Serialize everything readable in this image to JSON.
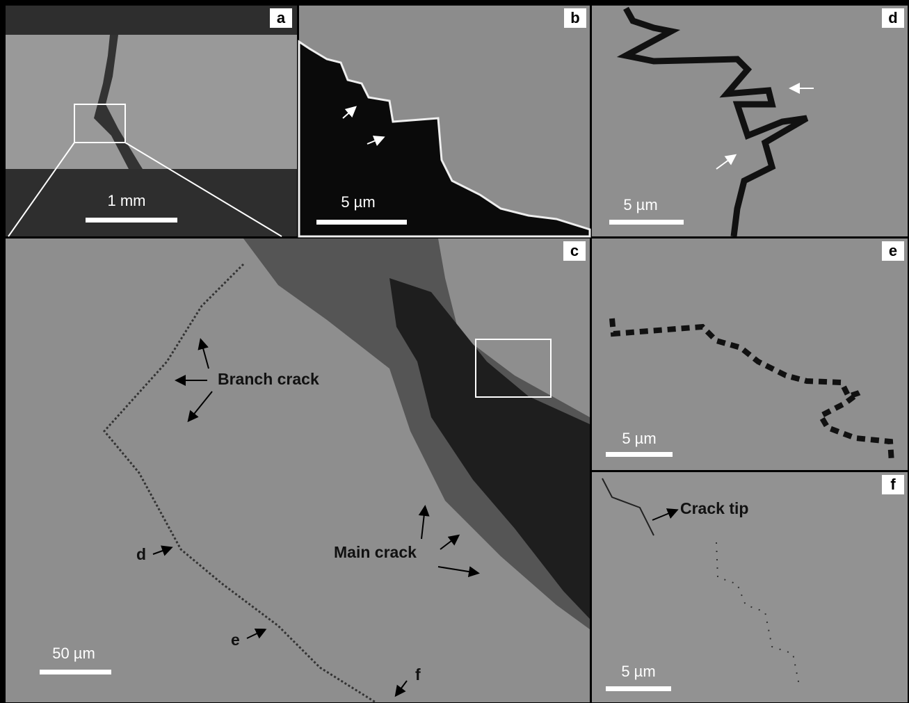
{
  "panels": [
    {
      "label": "a",
      "scale_bar": "1 mm"
    },
    {
      "label": "b",
      "scale_bar": "5 µm"
    },
    {
      "label": "d",
      "scale_bar": "5 µm"
    },
    {
      "label": "c",
      "scale_bar": "50 µm",
      "annotations": [
        "Branch crack",
        "Main crack",
        "d",
        "e",
        "f"
      ]
    },
    {
      "label": "e",
      "scale_bar": "5 µm"
    },
    {
      "label": "f",
      "scale_bar": "5 µm",
      "annotations": [
        "Crack tip"
      ]
    }
  ]
}
